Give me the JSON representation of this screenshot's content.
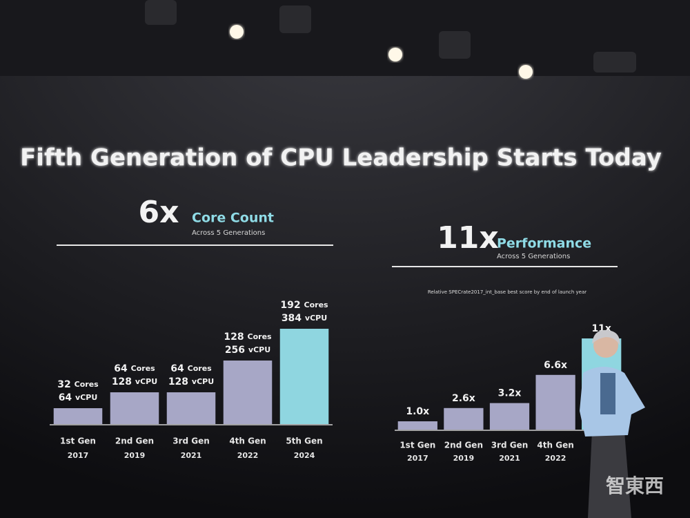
{
  "slide": {
    "title": "Fifth Generation of CPU Leadership Starts Today",
    "watermark": "智東西"
  },
  "chart_data": [
    {
      "type": "bar",
      "headline": "6x",
      "title": "Core Count",
      "subtitle": "Across 5 Generations",
      "categories": [
        "1st Gen",
        "2nd Gen",
        "3rd Gen",
        "4th Gen",
        "5th Gen"
      ],
      "years": [
        "2017",
        "2019",
        "2021",
        "2022",
        "2024"
      ],
      "values": [
        32,
        64,
        64,
        128,
        192
      ],
      "value_unit": "Cores",
      "vcpu": [
        64,
        128,
        128,
        256,
        384
      ],
      "vcpu_unit": "vCPU",
      "colors": [
        "#a7a7c6",
        "#a7a7c6",
        "#a7a7c6",
        "#a7a7c6",
        "#8fd6e0"
      ]
    },
    {
      "type": "bar",
      "headline": "11x",
      "title": "Performance",
      "subtitle": "Across 5 Generations",
      "note": "Relative SPECrate2017_int_base best score by end of launch year",
      "categories": [
        "1st Gen",
        "2nd Gen",
        "3rd Gen",
        "4th Gen",
        null
      ],
      "years": [
        "2017",
        "2019",
        "2021",
        "2022",
        null
      ],
      "values": [
        1.0,
        2.6,
        3.2,
        6.6,
        11
      ],
      "value_labels": [
        "1.0x",
        "2.6x",
        "3.2x",
        "6.6x",
        "11x"
      ],
      "colors": [
        "#a7a7c6",
        "#a7a7c6",
        "#a7a7c6",
        "#a7a7c6",
        "#8fd6e0"
      ]
    }
  ]
}
